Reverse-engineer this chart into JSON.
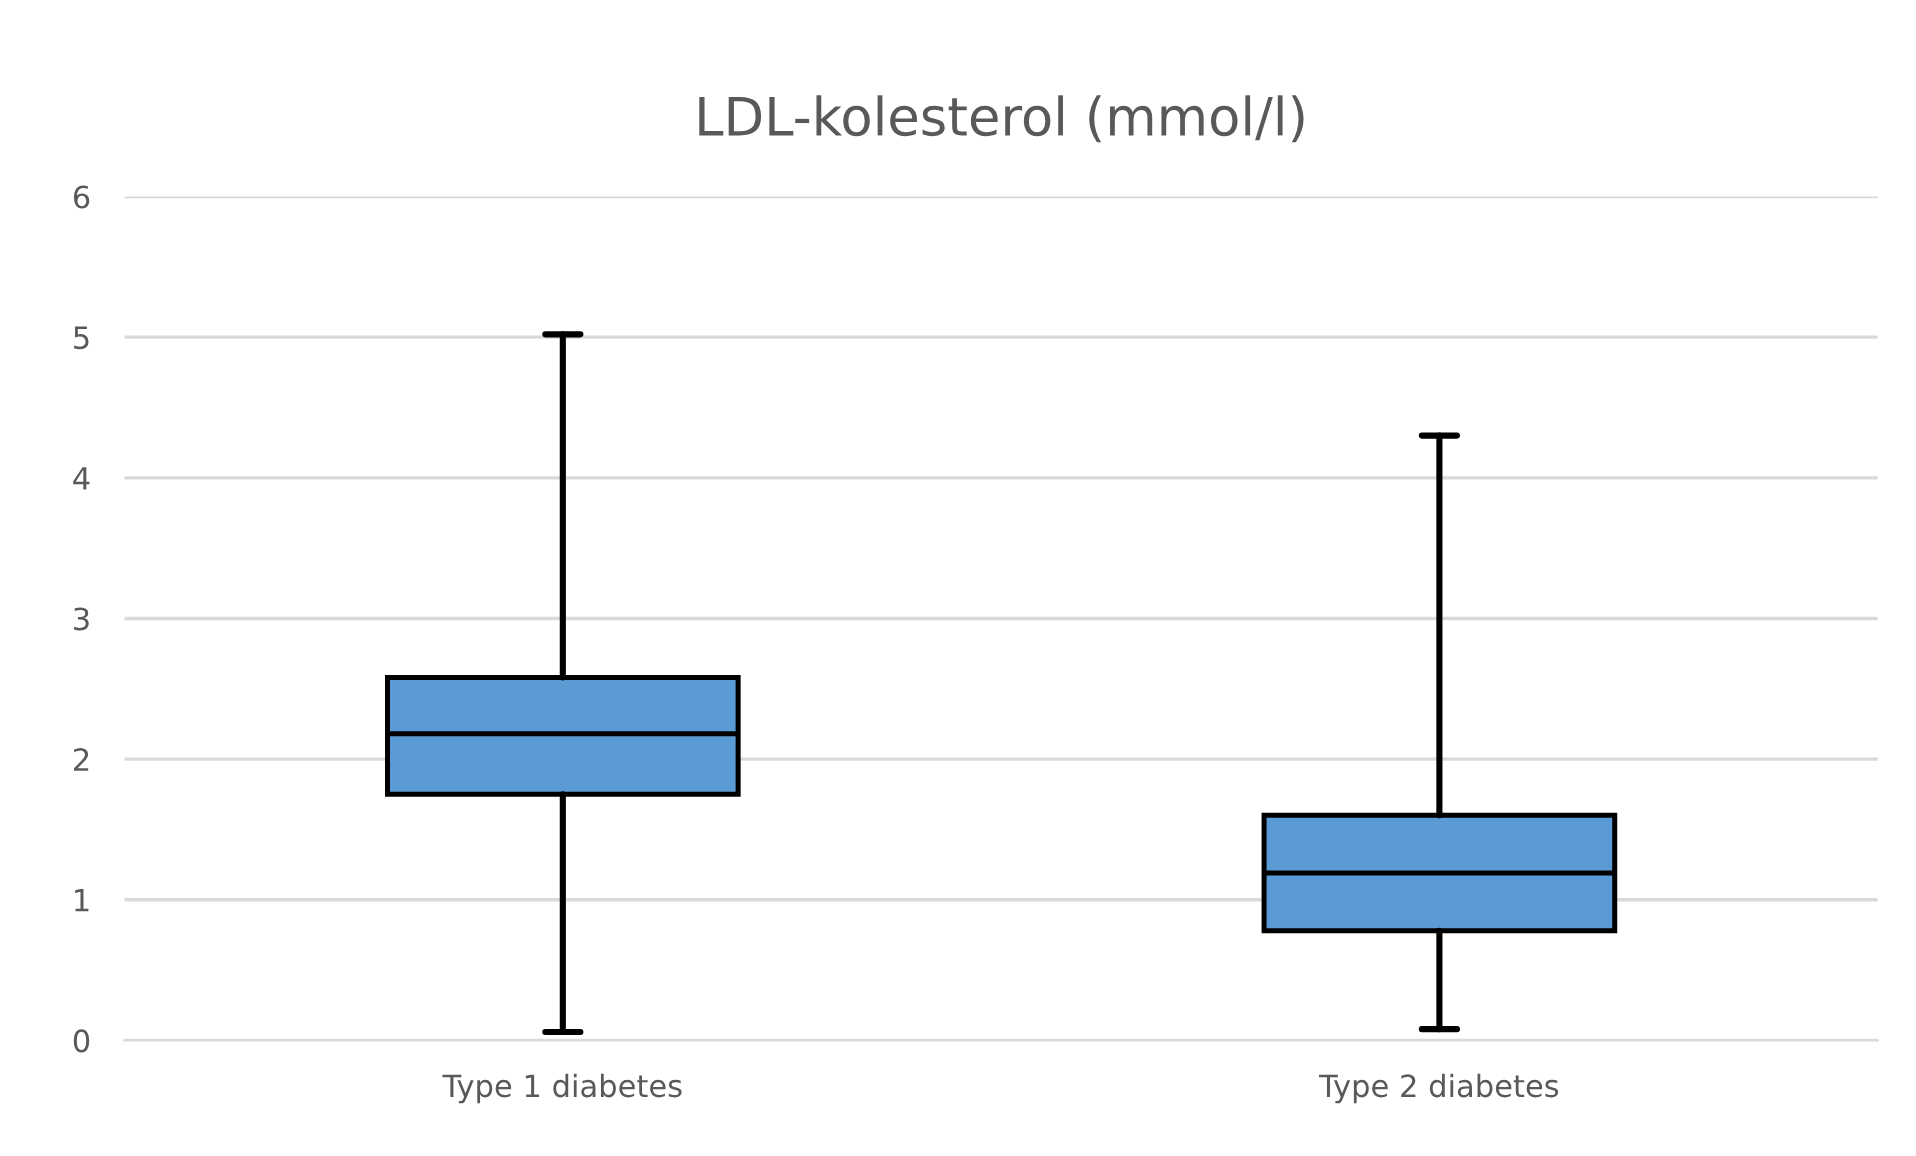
{
  "chart_data": {
    "type": "box",
    "title": "LDL-kolesterol (mmol/l)",
    "categories": [
      "Type 1 diabetes",
      "Type 2 diabetes"
    ],
    "boxes": [
      {
        "low": 0.06,
        "q1": 1.75,
        "median": 2.18,
        "q3": 2.58,
        "high": 5.02
      },
      {
        "low": 0.08,
        "q1": 0.78,
        "median": 1.19,
        "q3": 1.6,
        "high": 4.3
      }
    ],
    "color": "#5b9bd5",
    "ylim": [
      0,
      6
    ],
    "yticks": [
      0,
      1,
      2,
      3,
      4,
      5,
      6
    ],
    "grid": "y"
  }
}
